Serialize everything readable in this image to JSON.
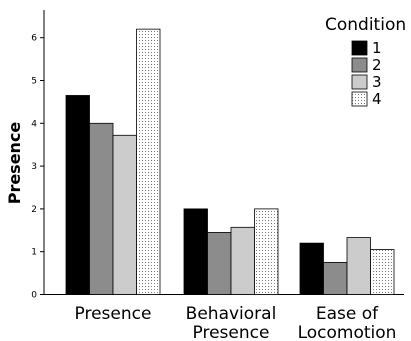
{
  "chart_data": {
    "type": "bar",
    "title": "",
    "xlabel": "",
    "ylabel": "Presence",
    "ylim": [
      0,
      6.4
    ],
    "yticks": [
      "0",
      "1",
      "2",
      "3",
      "4",
      "5",
      "6"
    ],
    "categories": [
      [
        "Presence"
      ],
      [
        "Behavioral",
        "Presence"
      ],
      [
        "Ease of",
        "Locomotion"
      ]
    ],
    "legend": {
      "title": "Condition",
      "placement": "top-right"
    },
    "series": [
      {
        "name": "1",
        "color": "#000000",
        "pattern": "solid",
        "values": [
          4.65,
          2.0,
          1.2
        ]
      },
      {
        "name": "2",
        "color": "#8c8c8c",
        "pattern": "solid",
        "values": [
          4.0,
          1.45,
          0.75
        ]
      },
      {
        "name": "3",
        "color": "#cccccc",
        "pattern": "solid",
        "values": [
          3.72,
          1.57,
          1.33
        ]
      },
      {
        "name": "4",
        "color": "#ffffff",
        "pattern": "dotted",
        "values": [
          6.2,
          2.0,
          1.05
        ]
      }
    ]
  }
}
